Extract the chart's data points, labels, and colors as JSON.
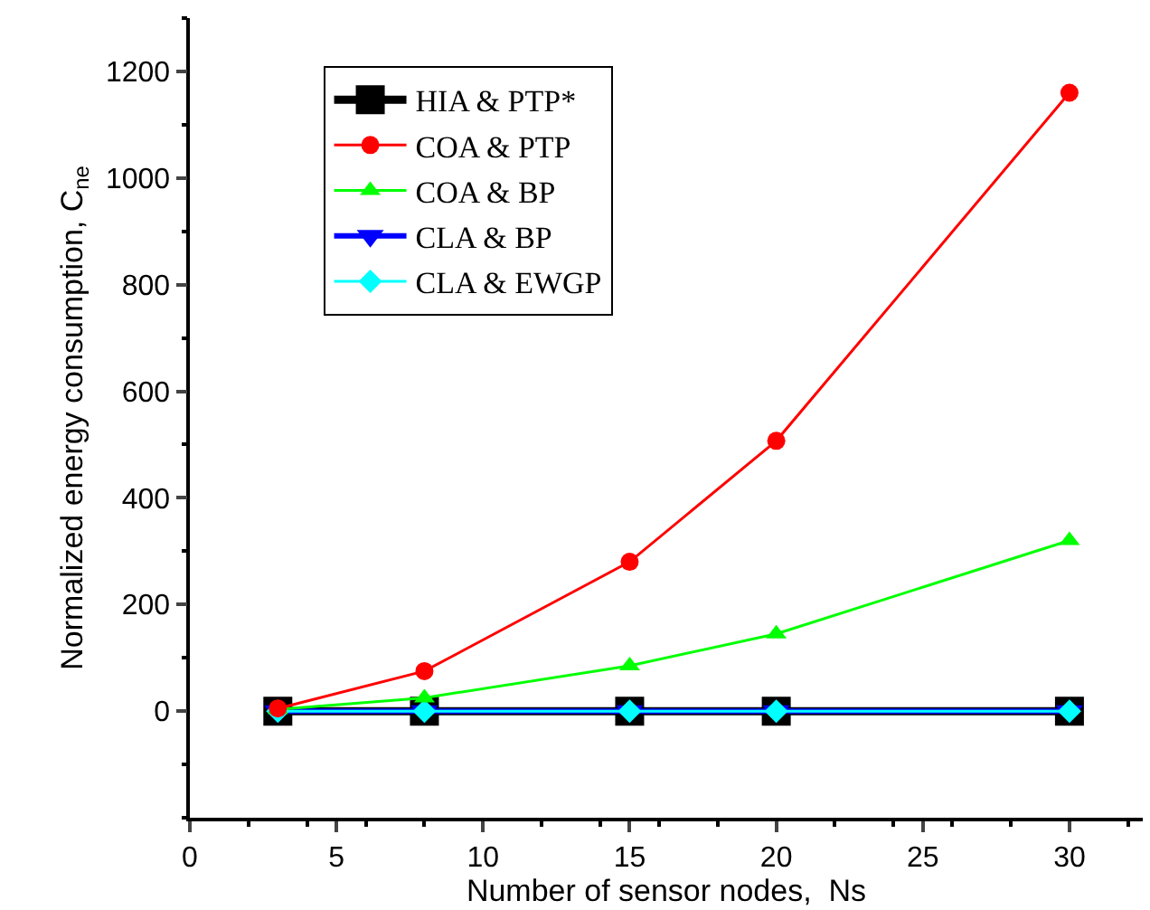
{
  "chart_data": {
    "type": "line",
    "xlabel": "Number of sensor nodes,  Ns",
    "ylabel": "Normalized energy consumption, C$_{ne}$",
    "x": [
      3,
      8,
      15,
      20,
      30
    ],
    "series": [
      {
        "name": "HIA & PTP*",
        "color": "#000000",
        "marker": "square",
        "values": [
          0,
          0,
          0,
          0,
          0
        ]
      },
      {
        "name": "COA & PTP",
        "color": "#ff0000",
        "marker": "circle",
        "values": [
          5,
          75,
          280,
          507,
          1160
        ]
      },
      {
        "name": "COA & BP",
        "color": "#00ff00",
        "marker": "triangle",
        "values": [
          3,
          25,
          85,
          145,
          320
        ]
      },
      {
        "name": "CLA & BP",
        "color": "#0000ff",
        "marker": "triangle-down",
        "values": [
          0,
          0,
          0,
          0,
          0
        ]
      },
      {
        "name": "CLA & EWGP",
        "color": "#00ffff",
        "marker": "diamond",
        "values": [
          0,
          0,
          0,
          0,
          0
        ]
      }
    ],
    "xlim": [
      0,
      32.5
    ],
    "xticks": [
      0,
      5,
      10,
      15,
      20,
      25,
      30
    ],
    "ylim": [
      -200,
      1300
    ],
    "yticks": [
      0,
      200,
      400,
      600,
      800,
      1000,
      1200
    ],
    "grid": false,
    "legend": "top left",
    "line_style": "solid"
  }
}
